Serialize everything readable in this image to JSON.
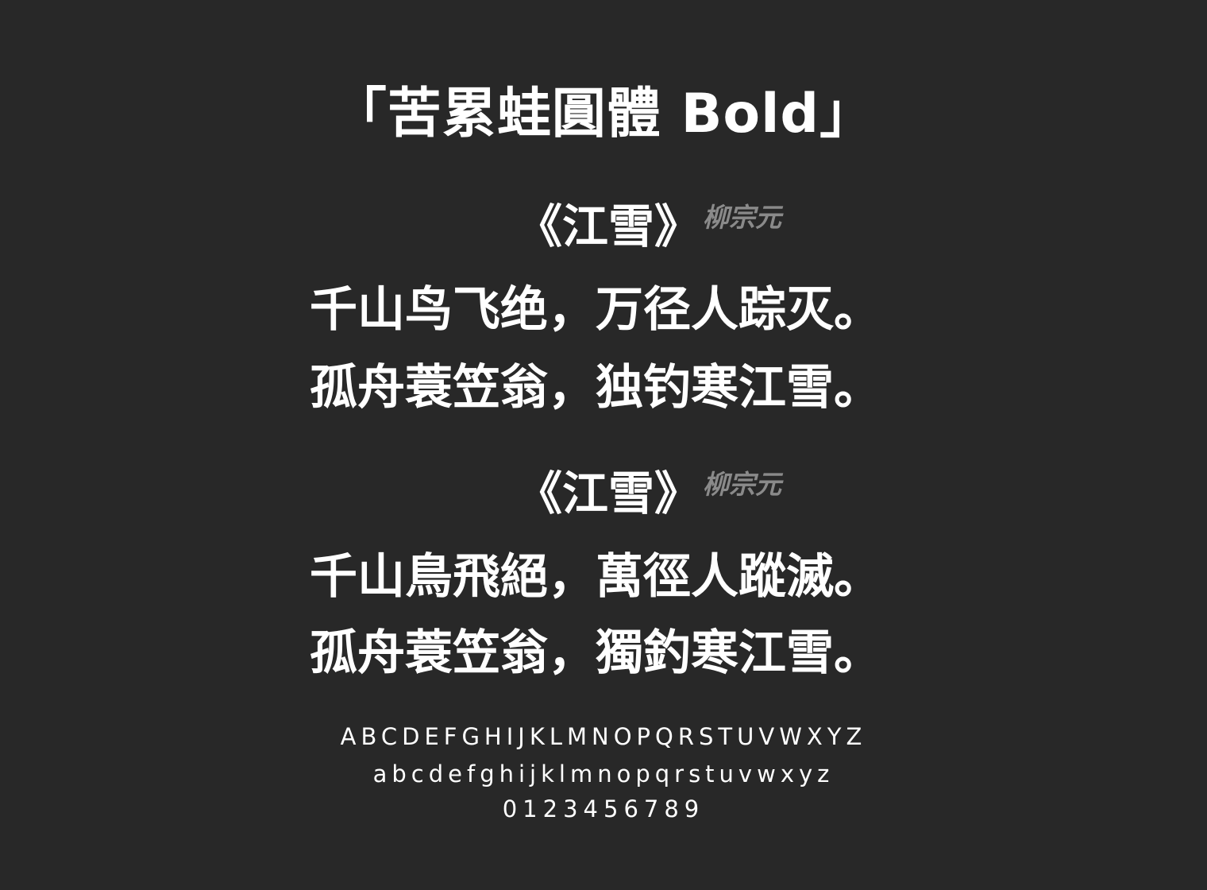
{
  "title": "「苦累蛙圓體 Bold」",
  "simplified": {
    "poem_title": "《江雪》",
    "author": "柳宗元",
    "lines": [
      "千山鸟飞绝，万径人踪灭。",
      "孤舟蓑笠翁，独钓寒江雪。"
    ]
  },
  "traditional": {
    "poem_title": "《江雪》",
    "author": "柳宗元",
    "lines": [
      "千山鳥飛絕，萬徑人蹤滅。",
      "孤舟蓑笠翁，獨釣寒江雪。"
    ]
  },
  "glyphs": {
    "uppercase": "ABCDEFGHIJKLMNOPQRSTUVWXYZ",
    "lowercase": "abcdefghijklmnopqrstuvwxyz",
    "digits": "0123456789"
  },
  "colors": {
    "background": "#282828",
    "text": "#ffffff",
    "author": "#8a8a8a"
  }
}
